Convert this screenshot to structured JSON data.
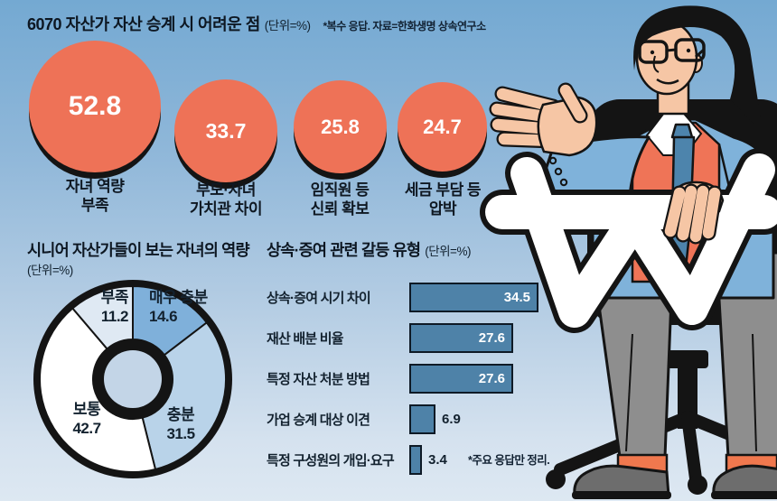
{
  "chart_data": [
    {
      "type": "bubble",
      "title": "6070 자산가 자산 승계 시 어려운 점",
      "unit": "(단위=%)",
      "note": "*복수 응답. 자료=한화생명 상속연구소",
      "bubble_color": "#ee7257",
      "items": [
        {
          "line1": "자녀 역량",
          "line2": "부족",
          "value": 52.8
        },
        {
          "line1": "부모·자녀",
          "line2": "가치관 차이",
          "value": 33.7
        },
        {
          "line1": "임직원 등",
          "line2": "신뢰 확보",
          "value": 25.8
        },
        {
          "line1": "세금 부담 등",
          "line2": "압박",
          "value": 24.7
        }
      ]
    },
    {
      "type": "pie",
      "donut": true,
      "title": "시니어 자산가들이 보는 자녀의 역량",
      "unit": "(단위=%)",
      "start_angle_deg": 0,
      "clockwise": true,
      "segments": [
        {
          "label": "매우 충분",
          "value": 14.6,
          "color": "#7fb0da"
        },
        {
          "label": "충분",
          "value": 31.5,
          "color": "#b9d3e9"
        },
        {
          "label": "보통",
          "value": 42.7,
          "color": "#ffffff"
        },
        {
          "label": "부족",
          "value": 11.2,
          "color": "#dfe9f3"
        }
      ]
    },
    {
      "type": "bar",
      "orientation": "horizontal",
      "title": "상속·증여 관련 갈등 유형",
      "unit": "(단위=%)",
      "note": "*주요 응답만 정리.",
      "bar_color": "#4e82a8",
      "inside_label_threshold": 20,
      "xlim": [
        0,
        40
      ],
      "categories": [
        "상속·증여 시기 차이",
        "재산 배분 비율",
        "특정 자산 처분 방법",
        "가업 승계 대상 이견",
        "특정 구성원의 개입·요구"
      ],
      "values": [
        34.5,
        27.6,
        27.6,
        6.9,
        3.4
      ]
    }
  ],
  "illustration": {
    "elements": [
      "businessman-in-suit",
      "won-currency-symbol",
      "office-chair"
    ]
  }
}
